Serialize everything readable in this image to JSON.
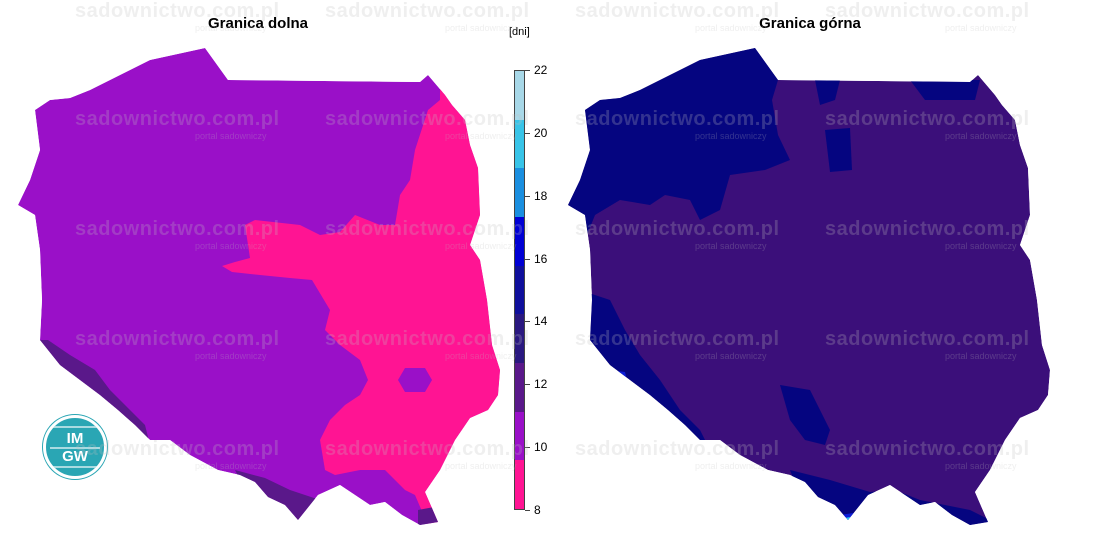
{
  "maps": [
    {
      "title": "Granica dolna"
    },
    {
      "title": "Granica górna"
    }
  ],
  "legend": {
    "unit": "[dni]",
    "ticks": [
      "8",
      "10",
      "12",
      "14",
      "16",
      "18",
      "20",
      "22"
    ],
    "range": [
      8,
      22
    ],
    "colors": [
      "#ff1493",
      "#9a10c8",
      "#5a188a",
      "#2a1880",
      "#0f0f9c",
      "#0000d4",
      "#1a8fe0",
      "#38c4e8",
      "#a8d8e8"
    ]
  },
  "logo": {
    "line1": "IM",
    "line2": "GW"
  },
  "watermark": {
    "text": "sadownictwo.com.pl",
    "subtext": "portal sadowniczy"
  },
  "colors": {
    "left_pink": "#ff1493",
    "left_purple": "#9a10c8",
    "left_dark": "#5a188a",
    "right_purple": "#3b0f7a",
    "right_navy": "#050580",
    "right_blue": "#0d1dd8",
    "right_cyan": "#2ec6f0"
  }
}
